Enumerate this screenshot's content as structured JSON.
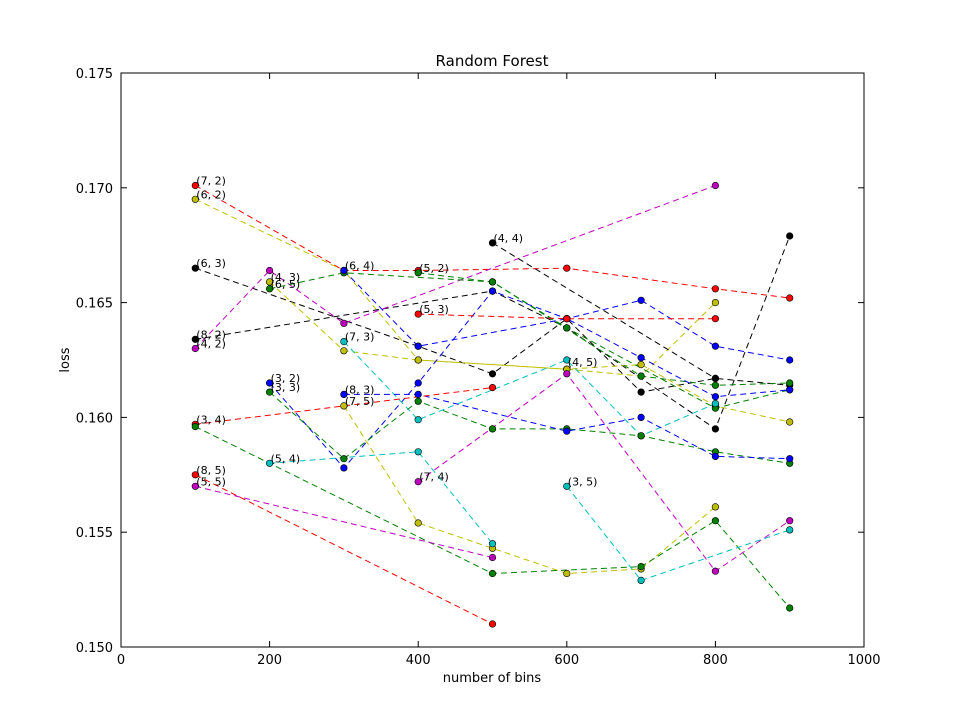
{
  "chart_data": {
    "type": "line",
    "title": "Random Forest",
    "xlabel": "number of bins",
    "ylabel": "loss",
    "xlim": [
      0,
      1000
    ],
    "ylim": [
      0.15,
      0.175
    ],
    "xticks": [
      "0",
      "200",
      "400",
      "600",
      "800",
      "1000"
    ],
    "yticks": [
      "0.150",
      "0.155",
      "0.160",
      "0.165",
      "0.170",
      "0.175"
    ],
    "grid": false,
    "legend": "none",
    "series": [
      {
        "color": "#ff0000",
        "x": [
          100,
          300,
          400,
          600,
          800,
          900
        ],
        "y": [
          0.1701,
          0.1664,
          0.1664,
          0.1665,
          0.1656,
          0.1652
        ]
      },
      {
        "color": "#bfbf00",
        "x": [
          100,
          300,
          400,
          600,
          700,
          800
        ],
        "y": [
          0.1695,
          0.1664,
          0.1625,
          0.1621,
          0.1618,
          0.165
        ]
      },
      {
        "color": "#000000",
        "x": [
          100,
          400,
          500,
          600,
          700,
          800,
          900
        ],
        "y": [
          0.1665,
          0.1631,
          0.1619,
          0.1643,
          0.1611,
          0.1617,
          0.1614
        ]
      },
      {
        "color": "#000000",
        "x": [
          100,
          500,
          600,
          800,
          900
        ],
        "y": [
          0.1634,
          0.1655,
          0.1639,
          0.1595,
          0.1679
        ]
      },
      {
        "color": "#bf00bf",
        "x": [
          100,
          200,
          300,
          800
        ],
        "y": [
          0.163,
          0.1664,
          0.1641,
          0.1701
        ]
      },
      {
        "color": "#bfbf00",
        "x": [
          200,
          300,
          400,
          600,
          700,
          800,
          900
        ],
        "y": [
          0.1659,
          0.1629,
          0.1625,
          0.1621,
          0.1623,
          0.1605,
          0.1598
        ]
      },
      {
        "color": "#008000",
        "x": [
          200,
          300,
          500,
          600,
          800,
          900
        ],
        "y": [
          0.1656,
          0.1663,
          0.1659,
          0.1639,
          0.1604,
          0.1612
        ]
      },
      {
        "color": "#008000",
        "x": [
          400,
          500,
          700,
          800,
          900
        ],
        "y": [
          0.1663,
          0.1659,
          0.1618,
          0.1614,
          0.1615
        ]
      },
      {
        "color": "#0000ff",
        "x": [
          200,
          300,
          400,
          500,
          600,
          700,
          800,
          900
        ],
        "y": [
          0.1615,
          0.1578,
          0.1615,
          0.1655,
          0.1643,
          0.1651,
          0.1631,
          0.1625
        ]
      },
      {
        "color": "#0000ff",
        "x": [
          300,
          400,
          600,
          700,
          800,
          900
        ],
        "y": [
          0.1664,
          0.1631,
          0.1643,
          0.1626,
          0.1609,
          0.1612
        ]
      },
      {
        "color": "#ff0000",
        "x": [
          400,
          600,
          800
        ],
        "y": [
          0.1645,
          0.1643,
          0.1643
        ]
      },
      {
        "color": "#00bfbf",
        "x": [
          300,
          400,
          600,
          700,
          800
        ],
        "y": [
          0.1633,
          0.1599,
          0.1625,
          0.1592,
          0.1606
        ]
      },
      {
        "color": "#008000",
        "x": [
          200,
          300,
          400,
          500,
          600,
          700,
          800,
          900
        ],
        "y": [
          0.1611,
          0.1582,
          0.1607,
          0.1595,
          0.1595,
          0.1592,
          0.1585,
          0.158
        ]
      },
      {
        "color": "#0000ff",
        "x": [
          300,
          400,
          600,
          700,
          800,
          900
        ],
        "y": [
          0.161,
          0.161,
          0.1594,
          0.16,
          0.1583,
          0.1582
        ]
      },
      {
        "color": "#bfbf00",
        "x": [
          300,
          400,
          500,
          600,
          700,
          800
        ],
        "y": [
          0.1605,
          0.1554,
          0.1543,
          0.1532,
          0.1534,
          0.1561
        ]
      },
      {
        "color": "#ff0000",
        "x": [
          100,
          500
        ],
        "y": [
          0.1597,
          0.1613
        ]
      },
      {
        "color": "#000000",
        "x": [
          500,
          800
        ],
        "y": [
          0.1676,
          0.1617
        ]
      },
      {
        "color": "#008000",
        "x": [
          100,
          500,
          700,
          800,
          900
        ],
        "y": [
          0.1596,
          0.1532,
          0.1535,
          0.1555,
          0.1517
        ]
      },
      {
        "color": "#00bfbf",
        "x": [
          200,
          400,
          500
        ],
        "y": [
          0.158,
          0.1585,
          0.1545
        ]
      },
      {
        "color": "#bf00bf",
        "x": [
          400,
          600,
          800,
          900
        ],
        "y": [
          0.1572,
          0.1619,
          0.1533,
          0.1555
        ]
      },
      {
        "color": "#ff0000",
        "x": [
          100,
          500
        ],
        "y": [
          0.1575,
          0.151
        ]
      },
      {
        "color": "#bf00bf",
        "x": [
          100,
          500
        ],
        "y": [
          0.157,
          0.1539
        ]
      },
      {
        "color": "#00bfbf",
        "x": [
          600,
          700,
          900
        ],
        "y": [
          0.157,
          0.1529,
          0.1551
        ]
      }
    ],
    "annotations": [
      {
        "text": "(7, 2)",
        "x": 100,
        "y": 0.1701
      },
      {
        "text": "(6, 2)",
        "x": 100,
        "y": 0.1695
      },
      {
        "text": "(6, 3)",
        "x": 100,
        "y": 0.1665
      },
      {
        "text": "(8, 2)",
        "x": 100,
        "y": 0.1634
      },
      {
        "text": "(4, 2)",
        "x": 100,
        "y": 0.163
      },
      {
        "text": "(3, 4)",
        "x": 100,
        "y": 0.1597
      },
      {
        "text": "(8, 5)",
        "x": 100,
        "y": 0.1575
      },
      {
        "text": "(5, 5)",
        "x": 100,
        "y": 0.157
      },
      {
        "text": "(4, 3)",
        "x": 200,
        "y": 0.1659
      },
      {
        "text": "(6, 5)",
        "x": 200,
        "y": 0.1656
      },
      {
        "text": "(3, 2)",
        "x": 200,
        "y": 0.1615
      },
      {
        "text": "(3, 3)",
        "x": 200,
        "y": 0.1611
      },
      {
        "text": "(5, 4)",
        "x": 200,
        "y": 0.158
      },
      {
        "text": "(6, 4)",
        "x": 300,
        "y": 0.1664
      },
      {
        "text": "(7, 3)",
        "x": 300,
        "y": 0.1633
      },
      {
        "text": "(8, 3)",
        "x": 300,
        "y": 0.161
      },
      {
        "text": "(7, 5)",
        "x": 300,
        "y": 0.1605
      },
      {
        "text": "(5, 2)",
        "x": 400,
        "y": 0.1663
      },
      {
        "text": "(5, 3)",
        "x": 400,
        "y": 0.1645
      },
      {
        "text": "(7, 4)",
        "x": 400,
        "y": 0.1572
      },
      {
        "text": "(4, 4)",
        "x": 500,
        "y": 0.1676
      },
      {
        "text": "(4, 5)",
        "x": 600,
        "y": 0.1622
      },
      {
        "text": "(3, 5)",
        "x": 600,
        "y": 0.157
      }
    ]
  }
}
